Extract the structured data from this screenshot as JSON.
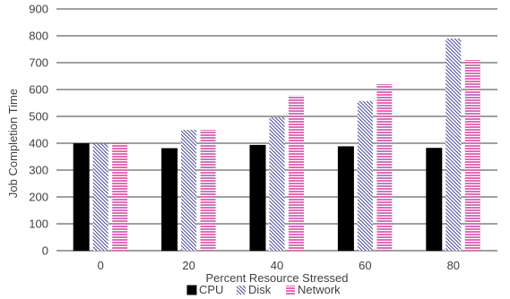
{
  "chart_data": {
    "type": "bar",
    "xlabel": "Percent Resource Stressed",
    "ylabel": "Job Completion Time",
    "categories": [
      "0",
      "20",
      "40",
      "60",
      "80"
    ],
    "ylim": [
      0,
      900
    ],
    "yticks": [
      0,
      100,
      200,
      300,
      400,
      500,
      600,
      700,
      800,
      900
    ],
    "grid": "horizontal",
    "legend_position": "bottom",
    "series": [
      {
        "name": "CPU",
        "values": [
          398,
          380,
          392,
          387,
          381
        ],
        "color": "#000000",
        "pattern": "solid"
      },
      {
        "name": "Disk",
        "values": [
          398,
          450,
          497,
          557,
          790
        ],
        "color": "#4a4a9a",
        "pattern": "diagonal-hatch"
      },
      {
        "name": "Network",
        "values": [
          398,
          450,
          578,
          620,
          710
        ],
        "color": "#cc3399",
        "pattern": "horizontal-lines"
      }
    ]
  }
}
